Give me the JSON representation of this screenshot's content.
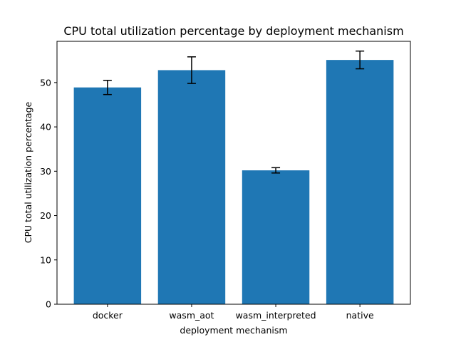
{
  "chart_data": {
    "type": "bar",
    "title": "CPU total utilization percentage by deployment mechanism",
    "xlabel": "deployment mechanism",
    "ylabel": "CPU total utilization percentage",
    "categories": [
      "docker",
      "wasm_aot",
      "wasm_interpreted",
      "native"
    ],
    "values": [
      48.9,
      52.8,
      30.2,
      55.1
    ],
    "errors": [
      1.6,
      3.0,
      0.6,
      2.0
    ],
    "ylim": [
      0,
      59.3
    ],
    "yticks": [
      0,
      10,
      20,
      30,
      40,
      50
    ],
    "grid": false,
    "bar_color": "#1f77b4",
    "error_color": "#000000"
  }
}
